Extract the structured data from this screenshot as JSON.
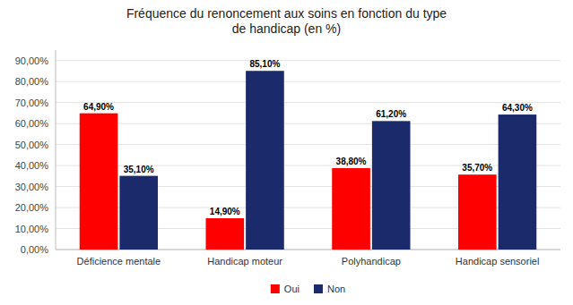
{
  "chart_data": {
    "type": "bar",
    "title": "Fréquence du renoncement aux soins en fonction du type\nde handicap (en %)",
    "categories": [
      "Déficience mentale",
      "Handicap moteur",
      "Polyhandicap",
      "Handicap sensoriel"
    ],
    "series": [
      {
        "name": "Oui",
        "color": "#FF0000",
        "values": [
          64.9,
          14.9,
          38.8,
          35.7
        ],
        "value_labels": [
          "64,90%",
          "14,90%",
          "38,80%",
          "35,70%"
        ]
      },
      {
        "name": "Non",
        "color": "#1B2A6B",
        "values": [
          35.1,
          85.1,
          61.2,
          64.3
        ],
        "value_labels": [
          "35,10%",
          "85,10%",
          "61,20%",
          "64,30%"
        ]
      }
    ],
    "ylim": [
      0,
      95
    ],
    "yticks": [
      {
        "value": 0,
        "label": "0,00%"
      },
      {
        "value": 10,
        "label": "10,00%"
      },
      {
        "value": 20,
        "label": "20,00%"
      },
      {
        "value": 30,
        "label": "30,00%"
      },
      {
        "value": 40,
        "label": "40,00%"
      },
      {
        "value": 50,
        "label": "50,00%"
      },
      {
        "value": 60,
        "label": "60,00%"
      },
      {
        "value": 70,
        "label": "70,00%"
      },
      {
        "value": 80,
        "label": "80,00%"
      },
      {
        "value": 90,
        "label": "90,00%"
      }
    ],
    "grid": true,
    "legend": "bottom",
    "data_labels": true
  }
}
